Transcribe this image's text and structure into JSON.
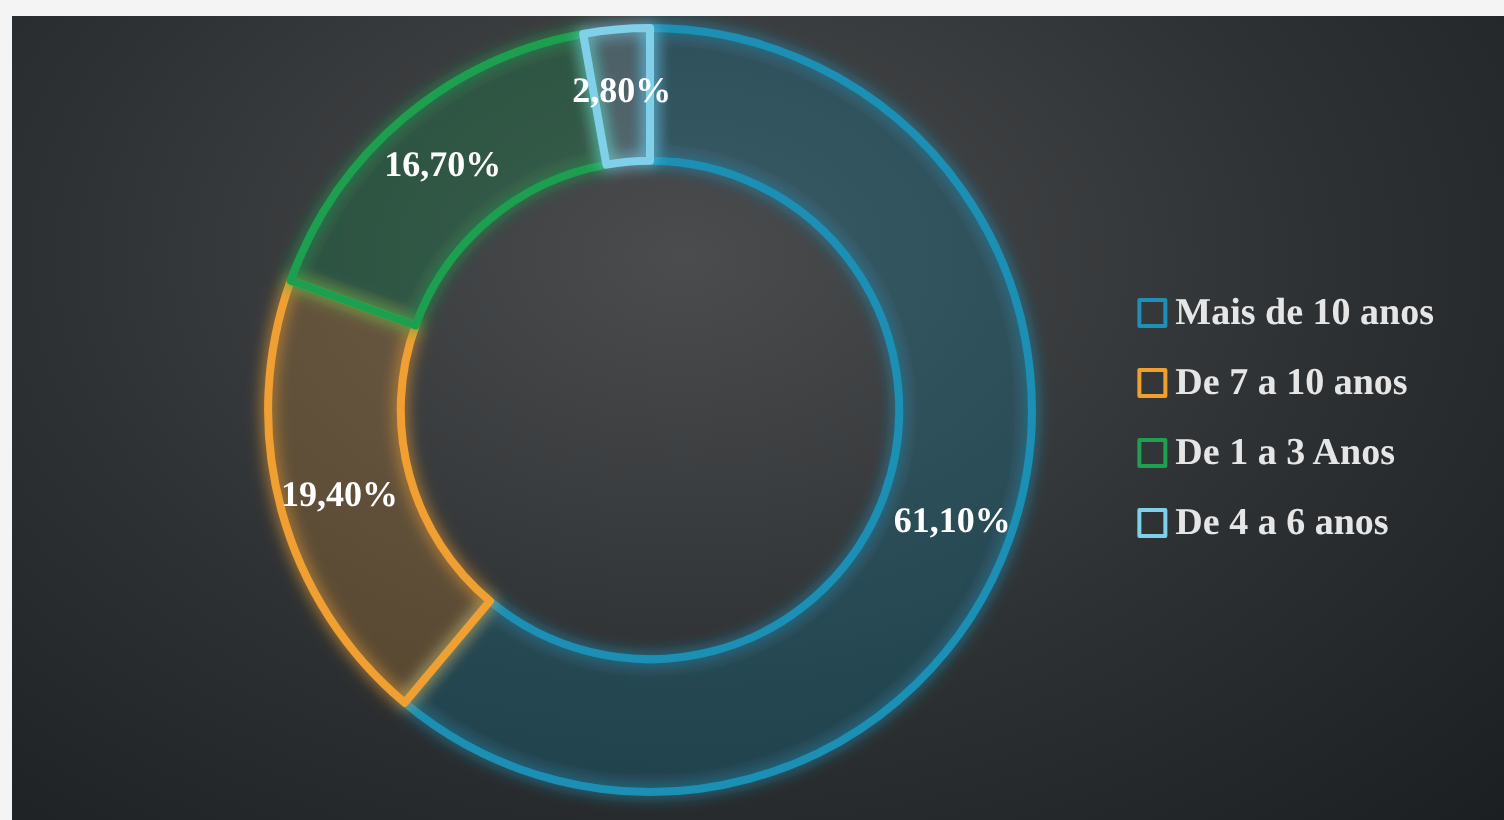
{
  "chart_data": {
    "type": "donut",
    "categories": [
      "Mais de 10 anos",
      "De 7 a 10 anos",
      "De 1 a 3 Anos",
      "De 4 a 6 anos"
    ],
    "values": [
      61.1,
      19.4,
      16.7,
      2.8
    ],
    "colors": [
      "#1f8fb5",
      "#f0a030",
      "#1fa050",
      "#80d0ea"
    ],
    "value_labels": [
      "61,10%",
      "19,40%",
      "16,70%",
      "2,80%"
    ],
    "legend": "right"
  }
}
